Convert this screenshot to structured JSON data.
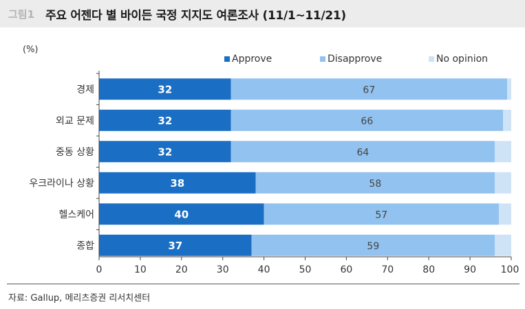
{
  "header": {
    "figure_label": "그림1",
    "title": "주요 어젠다 별 바이든 국정 지지도 여론조사 (11/1~11/21)"
  },
  "unit_label": "(%)",
  "source_text": "자료: Gallup, 메리츠증권 리서치센터",
  "colors": {
    "approve": "#1a6fc4",
    "disapprove": "#92c2ef",
    "no_opinion": "#cfe3f7",
    "axis": "#444444",
    "title_bar": "#ececec"
  },
  "chart_data": {
    "type": "bar",
    "orientation": "horizontal",
    "stacked": true,
    "categories": [
      "경제",
      "외교 문제",
      "중동 상황",
      "우크라이나 상황",
      "헬스케어",
      "종합"
    ],
    "series": [
      {
        "name": "Approve",
        "values": [
          32,
          32,
          32,
          38,
          40,
          37
        ]
      },
      {
        "name": "Disapprove",
        "values": [
          67,
          66,
          64,
          58,
          57,
          59
        ]
      },
      {
        "name": "No opinion",
        "values": [
          1,
          2,
          4,
          4,
          3,
          4
        ]
      }
    ],
    "xlim": [
      0,
      100
    ],
    "xticks": [
      0,
      10,
      20,
      30,
      40,
      50,
      60,
      70,
      80,
      90,
      100
    ],
    "grid": false,
    "legend_position": "top-right"
  }
}
